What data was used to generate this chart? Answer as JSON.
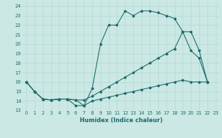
{
  "xlabel": "Humidex (Indice chaleur)",
  "bg_color": "#cce8e4",
  "line_color": "#1a6b6b",
  "grid_color": "#b0d8d0",
  "xlim": [
    -0.5,
    23.5
  ],
  "ylim": [
    13,
    24.5
  ],
  "yticks": [
    13,
    14,
    15,
    16,
    17,
    18,
    19,
    20,
    21,
    22,
    23,
    24
  ],
  "xticks": [
    0,
    1,
    2,
    3,
    4,
    5,
    6,
    7,
    8,
    9,
    10,
    11,
    12,
    13,
    14,
    15,
    16,
    17,
    18,
    19,
    20,
    21,
    22,
    23
  ],
  "curve1_x": [
    0,
    1,
    2,
    3,
    4,
    5,
    6,
    7,
    8,
    9,
    10,
    11,
    12,
    13,
    14,
    15,
    16,
    17,
    18,
    19,
    20,
    21,
    22
  ],
  "curve1_y": [
    16,
    15,
    14.2,
    14.1,
    14.2,
    14.2,
    14.1,
    13.5,
    15.3,
    20.0,
    22.0,
    22.0,
    23.5,
    23.0,
    23.5,
    23.5,
    23.3,
    23.0,
    22.7,
    21.3,
    19.3,
    18.5,
    16.0
  ],
  "curve2_x": [
    0,
    1,
    2,
    3,
    4,
    5,
    6,
    7,
    8,
    9,
    10,
    11,
    12,
    13,
    14,
    15,
    16,
    17,
    18,
    19,
    20,
    21,
    22
  ],
  "curve2_y": [
    16,
    15,
    14.2,
    14.1,
    14.2,
    14.2,
    14.1,
    14.1,
    14.5,
    15.0,
    15.5,
    16.0,
    16.5,
    17.0,
    17.5,
    18.0,
    18.5,
    19.0,
    19.5,
    21.3,
    21.3,
    19.3,
    16.0
  ],
  "curve3_x": [
    0,
    1,
    2,
    3,
    4,
    5,
    6,
    7,
    8,
    9,
    10,
    11,
    12,
    13,
    14,
    15,
    16,
    17,
    18,
    19,
    20,
    21,
    22
  ],
  "curve3_y": [
    16,
    15,
    14.2,
    14.1,
    14.2,
    14.2,
    13.5,
    13.5,
    14.0,
    14.2,
    14.4,
    14.6,
    14.8,
    15.0,
    15.2,
    15.4,
    15.6,
    15.8,
    16.0,
    16.2,
    16.0,
    16.0,
    16.0
  ]
}
